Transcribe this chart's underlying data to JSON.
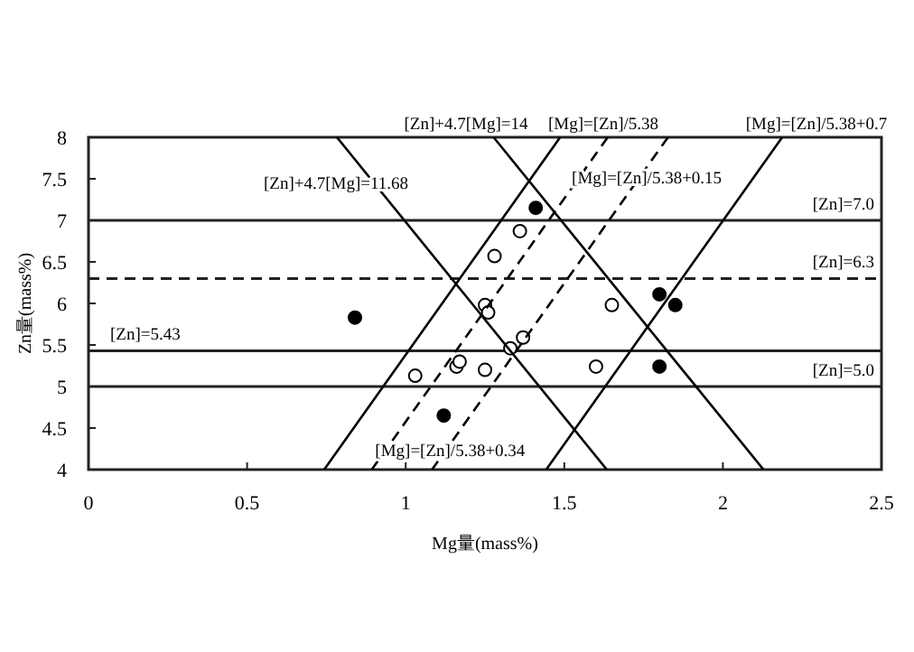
{
  "chart_data": {
    "type": "scatter",
    "xlabel": "Mg量(mass%)",
    "ylabel": "Zn量(mass%)",
    "xlim": [
      0,
      2.5
    ],
    "ylim": [
      4,
      8
    ],
    "xticks": [
      0,
      0.5,
      1,
      1.5,
      2,
      2.5
    ],
    "yticks": [
      4,
      4.5,
      5,
      5.5,
      6,
      6.5,
      7,
      7.5,
      8
    ],
    "grid": false,
    "series": [
      {
        "type": "scatter",
        "marker": "circle",
        "color": "#000000",
        "x": [
          0.84,
          1.41,
          1.8,
          1.85,
          1.8,
          1.12
        ],
        "values": [
          5.83,
          7.15,
          6.11,
          5.98,
          5.24,
          4.65
        ]
      },
      {
        "type": "scatter",
        "marker": "circle",
        "color": "#ffffff",
        "x": [
          1.03,
          1.16,
          1.17,
          1.25,
          1.33,
          1.37,
          1.25,
          1.26,
          1.28,
          1.36,
          1.6,
          1.65
        ],
        "values": [
          5.13,
          5.24,
          5.3,
          5.2,
          5.46,
          5.59,
          5.98,
          5.89,
          6.57,
          6.87,
          5.24,
          5.98
        ]
      },
      {
        "type": "line",
        "color": "#000000",
        "line_style": "solid",
        "x": [
          1.277,
          2.128
        ],
        "values": [
          8,
          4
        ]
      },
      {
        "type": "line",
        "color": "#000000",
        "line_style": "solid",
        "x": [
          0.783,
          1.634
        ],
        "values": [
          8,
          4
        ]
      },
      {
        "type": "line",
        "color": "#000000",
        "line_style": "solid",
        "x": [
          1.487,
          0.743
        ],
        "values": [
          8,
          4
        ]
      },
      {
        "type": "line",
        "color": "#000000",
        "line_style": "dashed",
        "x": [
          1.637,
          0.893
        ],
        "values": [
          8,
          4
        ]
      },
      {
        "type": "line",
        "color": "#000000",
        "line_style": "dashed",
        "x": [
          1.827,
          1.083
        ],
        "values": [
          8,
          4
        ]
      },
      {
        "type": "line",
        "color": "#000000",
        "line_style": "solid",
        "x": [
          2.187,
          1.443
        ],
        "values": [
          8,
          4
        ]
      }
    ],
    "ref_lines": [
      {
        "axis": "y",
        "value": 7.0,
        "line_style": "solid",
        "label": "[Zn]=7.0"
      },
      {
        "axis": "y",
        "value": 6.3,
        "line_style": "dashed",
        "label": "[Zn]=6.3"
      },
      {
        "axis": "y",
        "value": 5.43,
        "line_style": "solid",
        "label": "[Zn]=5.43"
      },
      {
        "axis": "y",
        "value": 5.0,
        "line_style": "solid",
        "label": "[Zn]=5.0"
      }
    ],
    "annotations": [
      "[Zn]+4.7[Mg]=14",
      "[Mg]=[Zn]/5.38",
      "[Mg]=[Zn]/5.38+0.7",
      "[Zn]+4.7[Mg]=11.68",
      {
        "text": "[Mg]=[Zn]/5.38+0.15",
        "x": 1.76,
        "y": 7.52
      },
      {
        "text": "[Mg]=[Zn]/5.38+0.34",
        "x": 1.14,
        "y": 4.24
      }
    ]
  }
}
